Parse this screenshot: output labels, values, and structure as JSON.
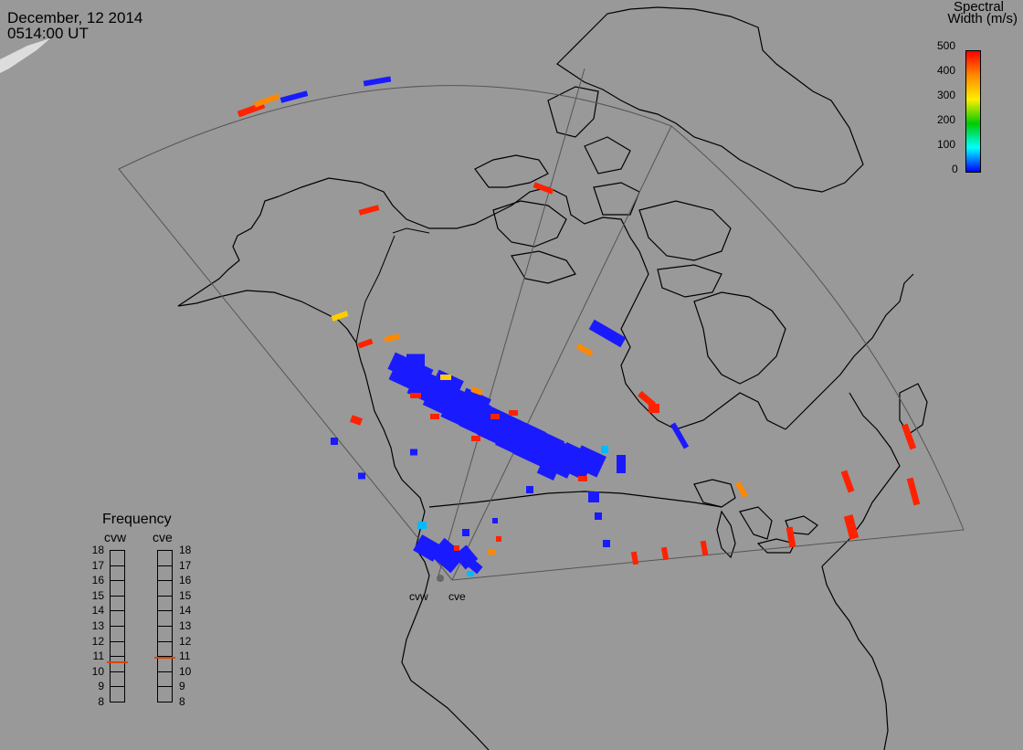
{
  "header": {
    "date": "December, 12 2014",
    "time": "0514:00 UT"
  },
  "colorbar": {
    "title_line1": "Spectral",
    "title_line2": "Width (m/s)",
    "ticks": [
      "500",
      "400",
      "300",
      "200",
      "100",
      "0"
    ],
    "tick_values": [
      500,
      400,
      300,
      200,
      100,
      0
    ],
    "range": [
      0,
      500
    ],
    "stops": [
      "#ff0000",
      "#ff8800",
      "#ffee00",
      "#00cc00",
      "#00ffff",
      "#0000ff"
    ]
  },
  "frequency": {
    "title": "Frequency",
    "left_name": "cvw",
    "right_name": "cve",
    "ticks": [
      "18",
      "17",
      "16",
      "15",
      "14",
      "13",
      "12",
      "11",
      "10",
      "9",
      "8"
    ],
    "range_mhz": [
      8,
      18
    ],
    "left_value_mhz": 10.6,
    "right_value_mhz": 10.9,
    "marker_color": "#dd4400"
  },
  "radars": [
    {
      "label": "cvw"
    },
    {
      "label": "cve"
    }
  ],
  "colors": {
    "background": "#999999",
    "coastline": "#000000",
    "fov_outline": "#555555",
    "site_marker": "#666666"
  }
}
